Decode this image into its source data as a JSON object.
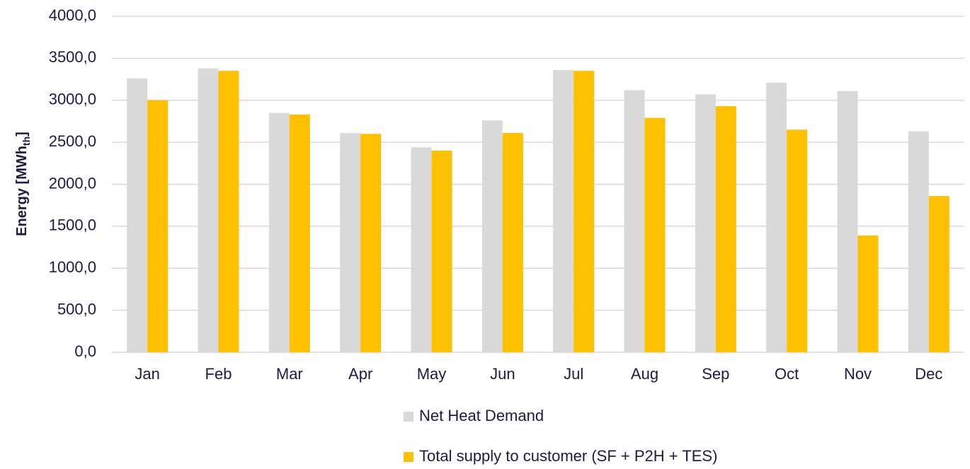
{
  "chart_data": {
    "type": "bar",
    "y_label": [
      "Energy [MWh",
      "th",
      "]"
    ],
    "categories": [
      "Jan",
      "Feb",
      "Mar",
      "Apr",
      "May",
      "Jun",
      "Jul",
      "Aug",
      "Sep",
      "Oct",
      "Nov",
      "Dec"
    ],
    "series": [
      {
        "name": "Net Heat Demand",
        "color": "#d9d9d9",
        "values": [
          3260,
          3380,
          2850,
          2610,
          2440,
          2760,
          3360,
          3120,
          3070,
          3210,
          3110,
          2630
        ]
      },
      {
        "name": "Total supply to customer (SF + P2H + TES)",
        "color": "#ffc000",
        "values": [
          3000,
          3350,
          2830,
          2600,
          2400,
          2610,
          3350,
          2790,
          2930,
          2650,
          1390,
          1860
        ]
      }
    ],
    "ylim": [
      0,
      4000
    ],
    "yticks": [
      {
        "value": 0,
        "label": "0,0"
      },
      {
        "value": 500,
        "label": "500,0"
      },
      {
        "value": 1000,
        "label": "1000,0"
      },
      {
        "value": 1500,
        "label": "1500,0"
      },
      {
        "value": 2000,
        "label": "2000,0"
      },
      {
        "value": 2500,
        "label": "2500,0"
      },
      {
        "value": 3000,
        "label": "3000,0"
      },
      {
        "value": 3500,
        "label": "3500,0"
      },
      {
        "value": 4000,
        "label": "4000,0"
      }
    ],
    "grid": true,
    "legend": "bottom"
  }
}
